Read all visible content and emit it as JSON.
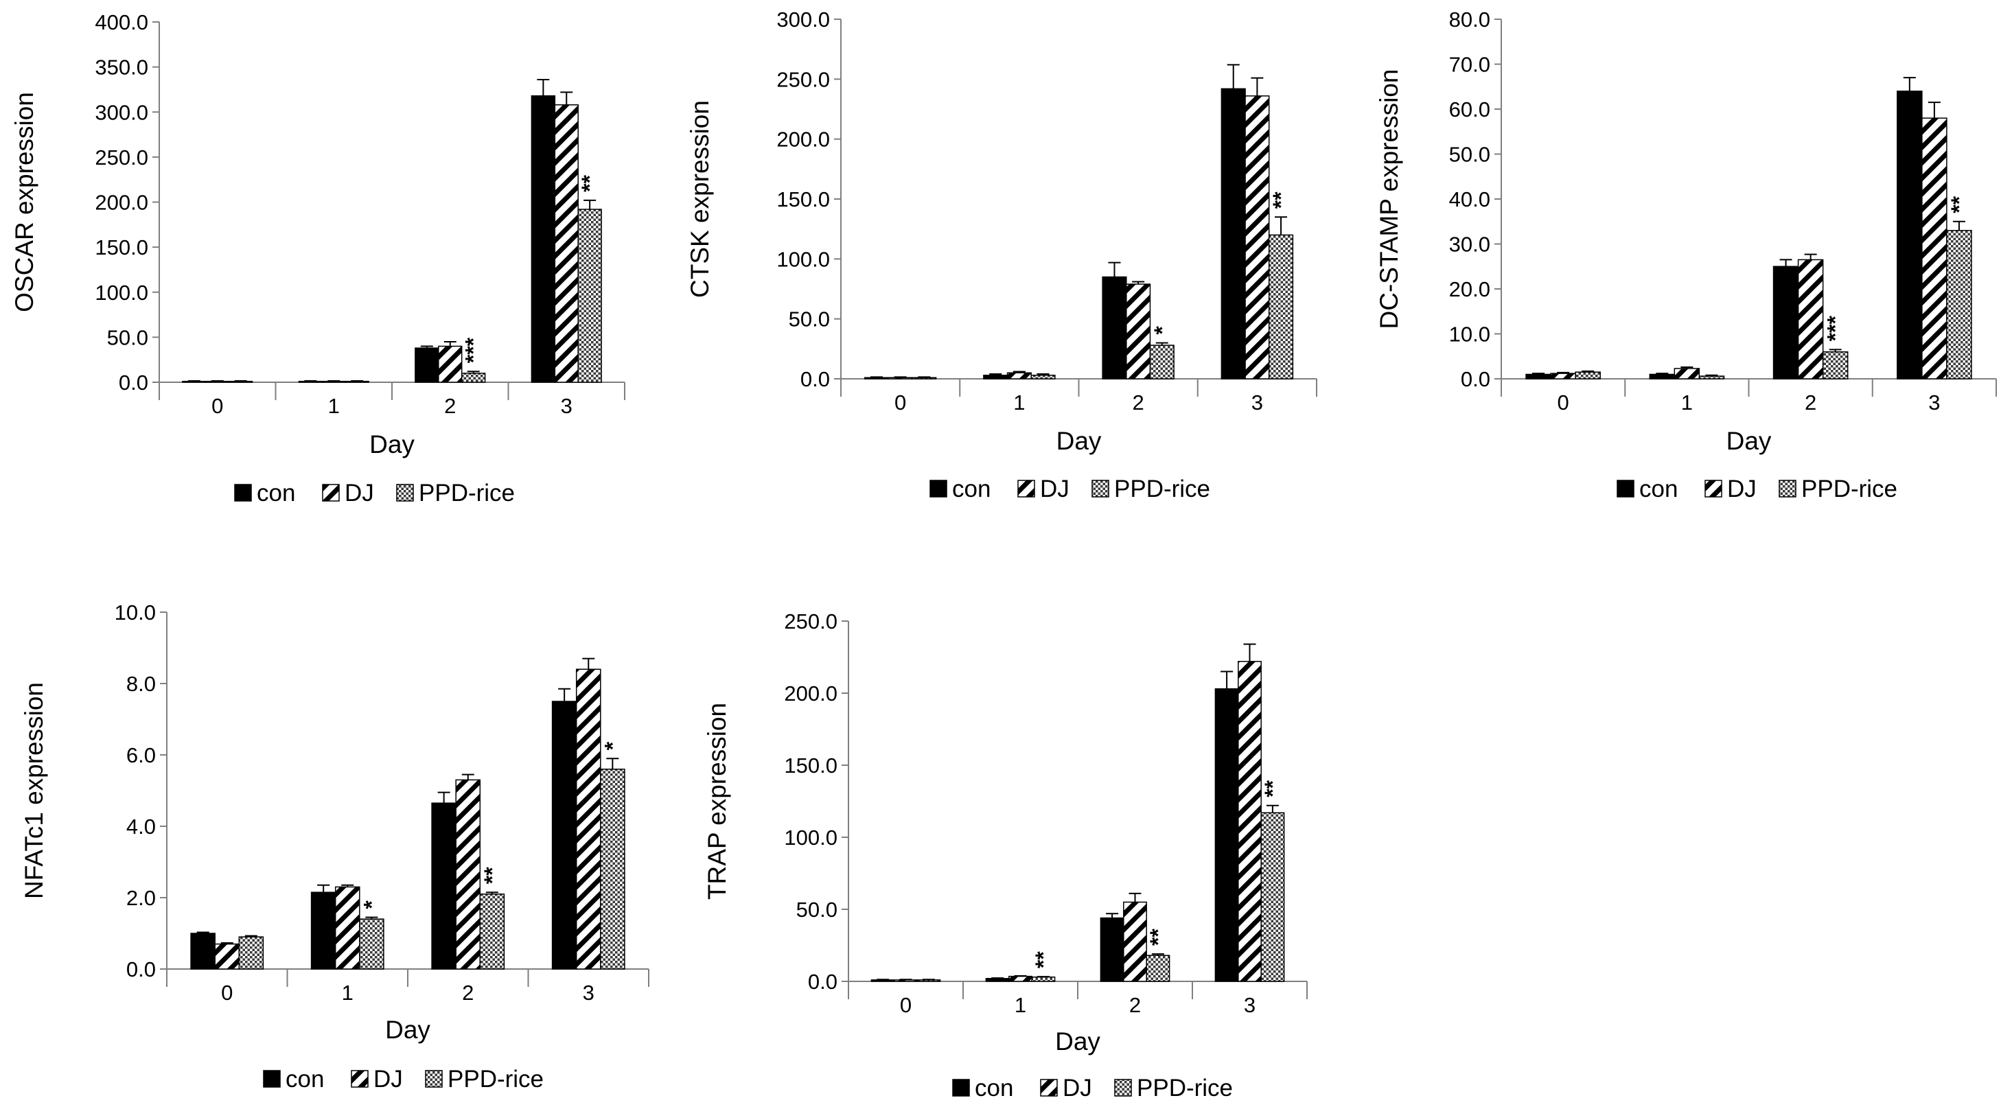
{
  "colors": {
    "con": "#000000",
    "axis": "#7f7f7f",
    "text": "#000000"
  },
  "chart_data": [
    {
      "type": "bar",
      "title": "",
      "xlabel": "Day",
      "ylabel": "OSCAR expression",
      "categories": [
        "0",
        "1",
        "2",
        "3"
      ],
      "ylim": [
        0,
        400
      ],
      "yticks": [
        "0.0",
        "50.0",
        "100.0",
        "150.0",
        "200.0",
        "250.0",
        "300.0",
        "350.0",
        "400.0"
      ],
      "series": [
        {
          "name": "con",
          "pattern": "solid",
          "values": [
            1,
            1,
            38,
            318
          ],
          "errors": [
            0.5,
            0.5,
            2,
            18
          ]
        },
        {
          "name": "DJ",
          "pattern": "hatch",
          "values": [
            1,
            1,
            40,
            308
          ],
          "errors": [
            0.5,
            0.5,
            5,
            14
          ]
        },
        {
          "name": "PPD-rice",
          "pattern": "dots",
          "values": [
            1,
            1,
            10,
            192
          ],
          "errors": [
            0.5,
            0.5,
            2,
            10
          ]
        }
      ],
      "significance": [
        {
          "category": "2",
          "series": "PPD-rice",
          "label": "***"
        },
        {
          "category": "3",
          "series": "PPD-rice",
          "label": "**"
        }
      ],
      "legend": [
        "con",
        "DJ",
        "PPD-rice"
      ],
      "legend_position": "bottom"
    },
    {
      "type": "bar",
      "title": "",
      "xlabel": "Day",
      "ylabel": "CTSK  expression",
      "categories": [
        "0",
        "1",
        "2",
        "3"
      ],
      "ylim": [
        0,
        300
      ],
      "yticks": [
        "0.0",
        "50.0",
        "100.0",
        "150.0",
        "200.0",
        "250.0",
        "300.0"
      ],
      "series": [
        {
          "name": "con",
          "pattern": "solid",
          "values": [
            1,
            3,
            85,
            242
          ],
          "errors": [
            0.5,
            1,
            12,
            20
          ]
        },
        {
          "name": "DJ",
          "pattern": "hatch",
          "values": [
            1,
            5,
            79,
            236
          ],
          "errors": [
            0.5,
            1,
            2,
            15
          ]
        },
        {
          "name": "PPD-rice",
          "pattern": "dots",
          "values": [
            1,
            3,
            28,
            120
          ],
          "errors": [
            0.5,
            1,
            2,
            15
          ]
        }
      ],
      "significance": [
        {
          "category": "2",
          "series": "PPD-rice",
          "label": "*"
        },
        {
          "category": "3",
          "series": "PPD-rice",
          "label": "**"
        }
      ],
      "legend": [
        "con",
        "DJ",
        "PPD-rice"
      ],
      "legend_position": "bottom"
    },
    {
      "type": "bar",
      "title": "",
      "xlabel": "Day",
      "ylabel": "DC-STAMP expression",
      "categories": [
        "0",
        "1",
        "2",
        "3"
      ],
      "ylim": [
        0,
        80
      ],
      "yticks": [
        "0.0",
        "10.0",
        "20.0",
        "30.0",
        "40.0",
        "50.0",
        "60.0",
        "70.0",
        "80.0"
      ],
      "series": [
        {
          "name": "con",
          "pattern": "solid",
          "values": [
            1,
            1,
            25,
            64
          ],
          "errors": [
            0.2,
            0.2,
            1.5,
            3
          ]
        },
        {
          "name": "DJ",
          "pattern": "hatch",
          "values": [
            1.2,
            2.3,
            26.5,
            58
          ],
          "errors": [
            0.2,
            0.3,
            1.2,
            3.5
          ]
        },
        {
          "name": "PPD-rice",
          "pattern": "dots",
          "values": [
            1.5,
            0.6,
            6,
            33
          ],
          "errors": [
            0.2,
            0.2,
            0.5,
            2
          ]
        }
      ],
      "significance": [
        {
          "category": "2",
          "series": "PPD-rice",
          "label": "***"
        },
        {
          "category": "3",
          "series": "PPD-rice",
          "label": "**"
        }
      ],
      "legend": [
        "con",
        "DJ",
        "PPD-rice"
      ],
      "legend_position": "bottom"
    },
    {
      "type": "bar",
      "title": "",
      "xlabel": "Day",
      "ylabel": "NFATc1 expression",
      "categories": [
        "0",
        "1",
        "2",
        "3"
      ],
      "ylim": [
        0,
        10
      ],
      "yticks": [
        "0.0",
        "2.0",
        "4.0",
        "6.0",
        "8.0",
        "10.0"
      ],
      "series": [
        {
          "name": "con",
          "pattern": "solid",
          "values": [
            1.0,
            2.15,
            4.65,
            7.5
          ],
          "errors": [
            0.03,
            0.2,
            0.3,
            0.35
          ]
        },
        {
          "name": "DJ",
          "pattern": "hatch",
          "values": [
            0.7,
            2.3,
            5.3,
            8.4
          ],
          "errors": [
            0.03,
            0.05,
            0.15,
            0.3
          ]
        },
        {
          "name": "PPD-rice",
          "pattern": "dots",
          "values": [
            0.9,
            1.4,
            2.1,
            5.6
          ],
          "errors": [
            0.03,
            0.05,
            0.05,
            0.3
          ]
        }
      ],
      "significance": [
        {
          "category": "1",
          "series": "PPD-rice",
          "label": "*"
        },
        {
          "category": "2",
          "series": "PPD-rice",
          "label": "**"
        },
        {
          "category": "3",
          "series": "PPD-rice",
          "label": "*"
        }
      ],
      "legend": [
        "con",
        "DJ",
        "PPD-rice"
      ],
      "legend_position": "bottom"
    },
    {
      "type": "bar",
      "title": "",
      "xlabel": "Day",
      "ylabel": "TRAP expression",
      "categories": [
        "0",
        "1",
        "2",
        "3"
      ],
      "ylim": [
        0,
        250
      ],
      "yticks": [
        "0.0",
        "50.0",
        "100.0",
        "150.0",
        "200.0",
        "250.0"
      ],
      "series": [
        {
          "name": "con",
          "pattern": "solid",
          "values": [
            1,
            2,
            44,
            203
          ],
          "errors": [
            0.3,
            0.3,
            3,
            12
          ]
        },
        {
          "name": "DJ",
          "pattern": "hatch",
          "values": [
            1,
            3.5,
            55,
            222
          ],
          "errors": [
            0.3,
            0.3,
            6,
            12
          ]
        },
        {
          "name": "PPD-rice",
          "pattern": "dots",
          "values": [
            1,
            3,
            18,
            117
          ],
          "errors": [
            0.3,
            0.3,
            1,
            5
          ]
        }
      ],
      "significance": [
        {
          "category": "1",
          "series": "PPD-rice",
          "label": "**"
        },
        {
          "category": "2",
          "series": "PPD-rice",
          "label": "**"
        },
        {
          "category": "3",
          "series": "PPD-rice",
          "label": "**"
        }
      ],
      "legend": [
        "con",
        "DJ",
        "PPD-rice"
      ],
      "legend_position": "bottom"
    }
  ]
}
